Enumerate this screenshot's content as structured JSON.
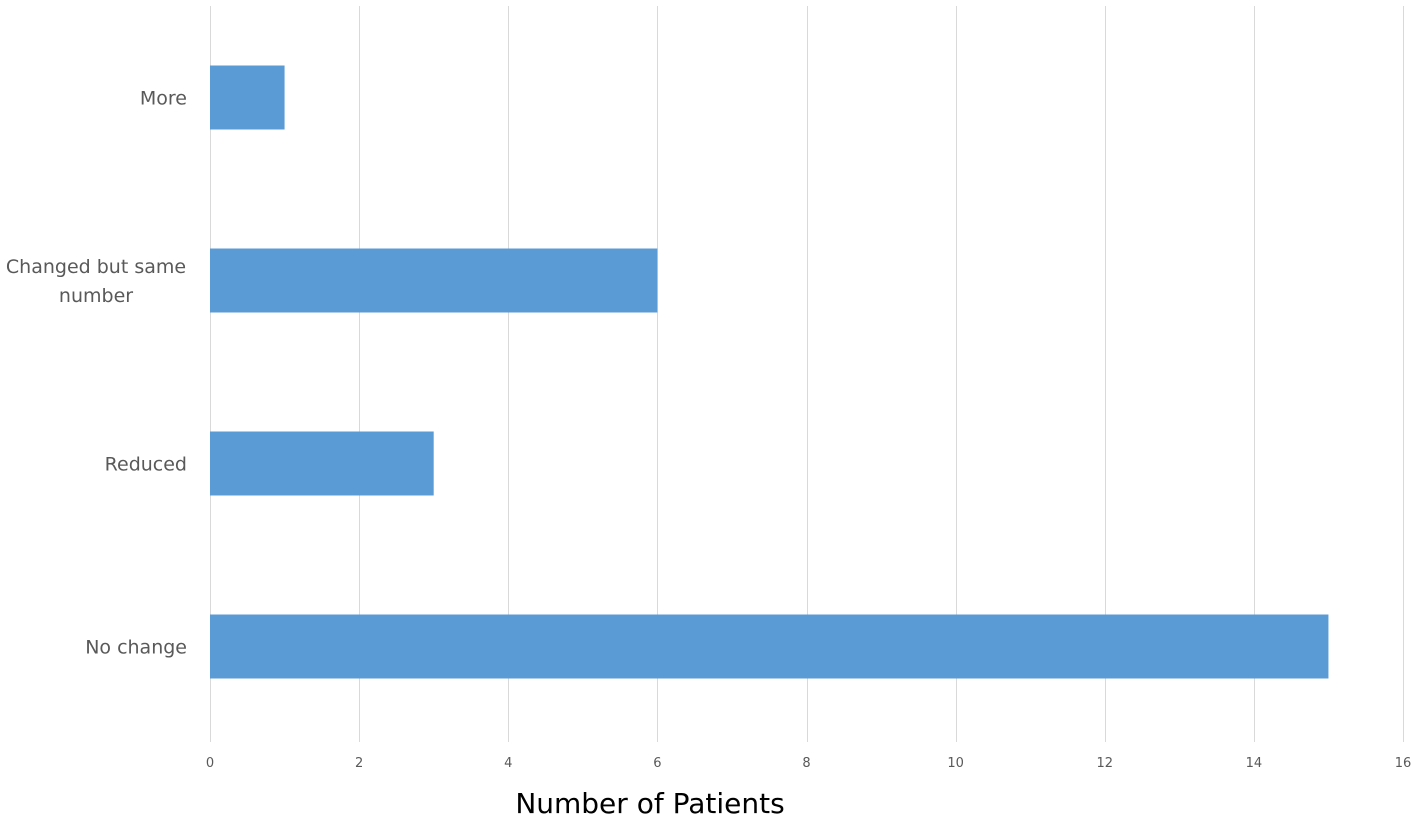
{
  "chart_data": {
    "type": "bar",
    "orientation": "horizontal",
    "categories": [
      "More",
      "Changed but same number",
      "Reduced",
      "No change"
    ],
    "category_lines": [
      [
        "More"
      ],
      [
        "Changed but same",
        "number"
      ],
      [
        "Reduced"
      ],
      [
        "No change"
      ]
    ],
    "values": [
      1,
      6,
      3,
      15
    ],
    "xlabel": "Number of Patients",
    "ylabel": "",
    "xlim": [
      0,
      16
    ],
    "xticks": [
      0,
      2,
      4,
      6,
      8,
      10,
      12,
      14,
      16
    ],
    "grid": true,
    "bar_color": "#5b9bd5",
    "grid_color": "#d9d9d9",
    "tick_label_color": "#595959"
  }
}
